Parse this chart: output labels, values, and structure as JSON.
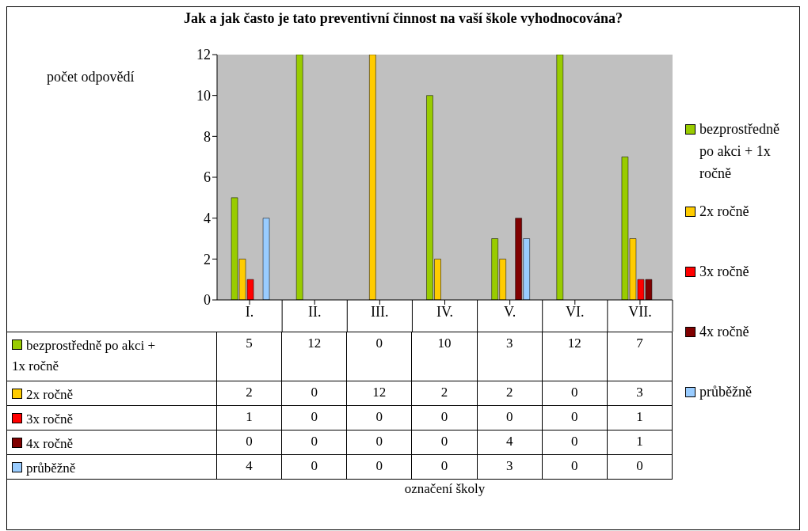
{
  "chart_data": {
    "type": "bar",
    "title": "Jak a jak často je tato preventivní činnost na vaší škole vyhodnocována?",
    "annotations": [
      "označení školy"
    ],
    "ylabel": "počet  odpovědí",
    "categories": [
      "I.",
      "II.",
      "III.",
      "IV.",
      "V.",
      "VI.",
      "VII."
    ],
    "series": [
      {
        "name": "bezprostředně po akci + 1x ročně",
        "color": "#99cc00",
        "values": [
          5,
          12,
          0,
          10,
          3,
          12,
          7
        ]
      },
      {
        "name": "2x ročně",
        "color": "#ffcc00",
        "values": [
          2,
          0,
          12,
          2,
          2,
          0,
          3
        ]
      },
      {
        "name": "3x ročně",
        "color": "#ff0000",
        "values": [
          1,
          0,
          0,
          0,
          0,
          0,
          1
        ]
      },
      {
        "name": "4x ročně",
        "color": "#800000",
        "values": [
          0,
          0,
          0,
          0,
          4,
          0,
          1
        ]
      },
      {
        "name": "průběžně",
        "color": "#99ccff",
        "values": [
          4,
          0,
          0,
          0,
          3,
          0,
          0
        ]
      }
    ],
    "ylim": [
      0,
      12
    ],
    "yticks": [
      0,
      2,
      4,
      6,
      8,
      10,
      12
    ],
    "grid": false,
    "legend": "right",
    "data_labels": true
  }
}
